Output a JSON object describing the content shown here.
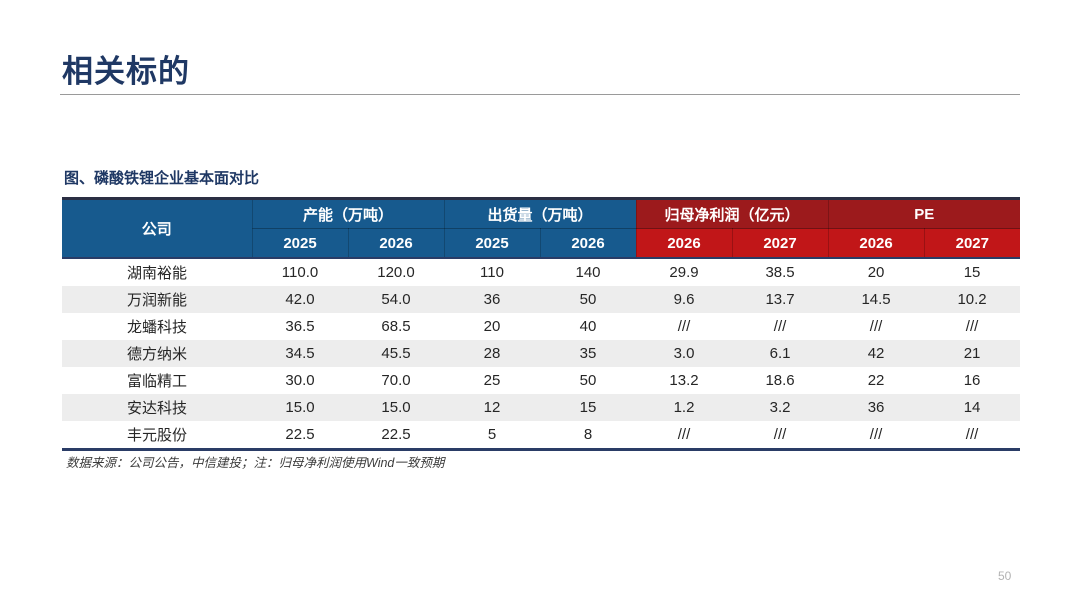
{
  "page": {
    "title": "相关标的",
    "page_number": "50"
  },
  "colors": {
    "title_navy": "#1F3864",
    "header_blue": "#175A8E",
    "header_red_dark": "#9C1A1C",
    "header_red_bright": "#C11618",
    "alt_row_gray": "#EDEDED",
    "table_border_navy": "#2A3C66"
  },
  "table": {
    "caption": "图、磷酸铁锂企业基本面对比",
    "company_header": "公司",
    "groups": [
      {
        "label": "产能（万吨）",
        "theme": "blue",
        "cols": [
          "2025",
          "2026"
        ]
      },
      {
        "label": "出货量（万吨）",
        "theme": "blue",
        "cols": [
          "2025",
          "2026"
        ]
      },
      {
        "label": "归母净利润（亿元）",
        "theme": "red",
        "cols": [
          "2026",
          "2027"
        ]
      },
      {
        "label": "PE",
        "theme": "red",
        "cols": [
          "2026",
          "2027"
        ]
      }
    ],
    "rows": [
      {
        "company": "湖南裕能",
        "values": [
          "110.0",
          "120.0",
          "110",
          "140",
          "29.9",
          "38.5",
          "20",
          "15"
        ]
      },
      {
        "company": "万润新能",
        "values": [
          "42.0",
          "54.0",
          "36",
          "50",
          "9.6",
          "13.7",
          "14.5",
          "10.2"
        ]
      },
      {
        "company": "龙蟠科技",
        "values": [
          "36.5",
          "68.5",
          "20",
          "40",
          "///",
          "///",
          "///",
          "///"
        ]
      },
      {
        "company": "德方纳米",
        "values": [
          "34.5",
          "45.5",
          "28",
          "35",
          "3.0",
          "6.1",
          "42",
          "21"
        ]
      },
      {
        "company": "富临精工",
        "values": [
          "30.0",
          "70.0",
          "25",
          "50",
          "13.2",
          "18.6",
          "22",
          "16"
        ]
      },
      {
        "company": "安达科技",
        "values": [
          "15.0",
          "15.0",
          "12",
          "15",
          "1.2",
          "3.2",
          "36",
          "14"
        ]
      },
      {
        "company": "丰元股份",
        "values": [
          "22.5",
          "22.5",
          "5",
          "8",
          "///",
          "///",
          "///",
          "///"
        ]
      }
    ],
    "footnote": "数据来源：公司公告，中信建投；注：归母净利润使用Wind一致预期"
  }
}
